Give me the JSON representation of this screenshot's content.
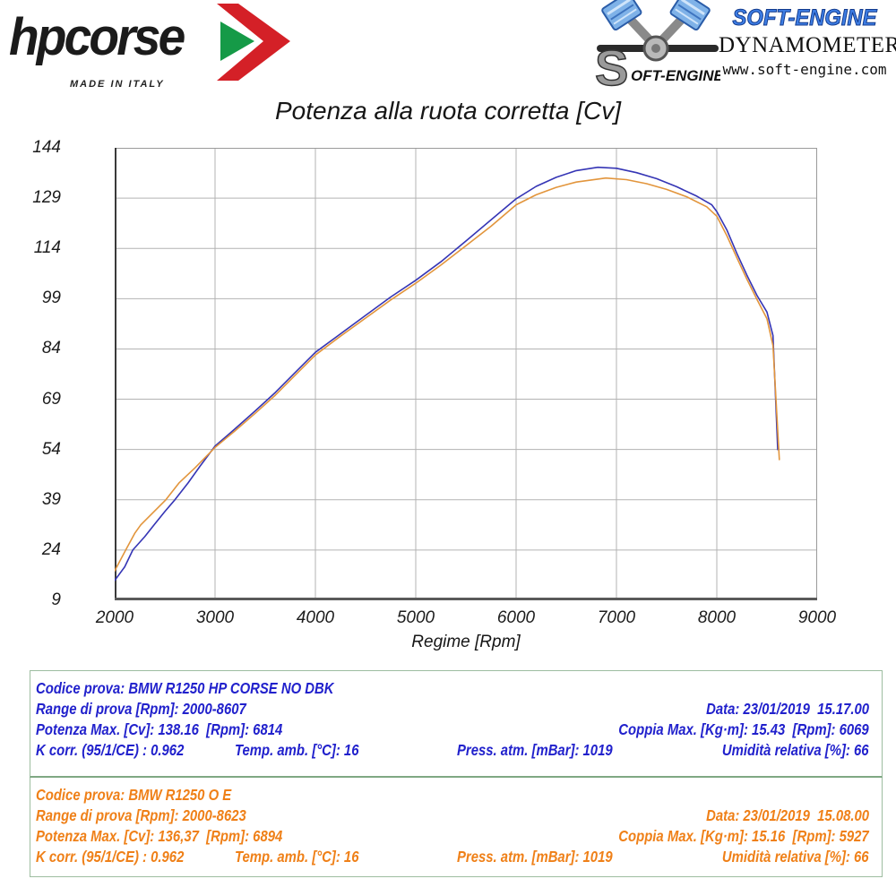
{
  "header": {
    "hpcorse": {
      "wordmark": "hpcorse",
      "made_in": "MADE IN ITALY",
      "arrow_red": "#d42027",
      "arrow_green": "#159a47"
    },
    "softengine": {
      "s_letter": "S",
      "s_rest": "OFT-ENGINE",
      "brand": "SOFT-ENGINE",
      "tagline": "DYNAMOMETERS",
      "url": "www.soft-engine.com"
    }
  },
  "chart": {
    "title": "Potenza alla ruota corretta [Cv]",
    "xlabel": "Regime [Rpm]"
  },
  "chart_data": {
    "type": "line",
    "title": "Potenza alla ruota corretta [Cv]",
    "xlabel": "Regime [Rpm]",
    "ylabel": "Potenza alla ruota corretta [Cv]",
    "xlim": [
      2000,
      9000
    ],
    "ylim": [
      9,
      144
    ],
    "xticks": [
      2000,
      3000,
      4000,
      5000,
      6000,
      7000,
      8000,
      9000
    ],
    "yticks": [
      9,
      24,
      39,
      54,
      69,
      84,
      99,
      114,
      129,
      144
    ],
    "grid": true,
    "legend_position": "none",
    "grid_color": "#b3b3b3",
    "series": [
      {
        "key": "blue",
        "name": "BMW R1250 HP CORSE NO DBK",
        "color": "#3535b5",
        "max_power_cv": 138.16,
        "max_power_rpm": 6814,
        "points": [
          [
            2000,
            14.9
          ],
          [
            2100,
            19
          ],
          [
            2180,
            24
          ],
          [
            2300,
            28
          ],
          [
            2400,
            31.8
          ],
          [
            2500,
            35.5
          ],
          [
            2600,
            39
          ],
          [
            2730,
            44
          ],
          [
            2850,
            49
          ],
          [
            3000,
            55
          ],
          [
            3200,
            60.2
          ],
          [
            3400,
            65.5
          ],
          [
            3600,
            71
          ],
          [
            3800,
            77
          ],
          [
            4000,
            83
          ],
          [
            4250,
            88.5
          ],
          [
            4500,
            94
          ],
          [
            4750,
            99.5
          ],
          [
            5000,
            104.5
          ],
          [
            5250,
            110
          ],
          [
            5500,
            116.2
          ],
          [
            5750,
            122.5
          ],
          [
            6000,
            128.8
          ],
          [
            6200,
            132.5
          ],
          [
            6400,
            135.2
          ],
          [
            6600,
            137.2
          ],
          [
            6814,
            138.2
          ],
          [
            7000,
            137.9
          ],
          [
            7200,
            136.6
          ],
          [
            7400,
            134.8
          ],
          [
            7600,
            132.4
          ],
          [
            7800,
            129.6
          ],
          [
            7950,
            127
          ],
          [
            8000,
            125
          ],
          [
            8100,
            119.5
          ],
          [
            8200,
            112.5
          ],
          [
            8300,
            106
          ],
          [
            8400,
            100
          ],
          [
            8500,
            95
          ],
          [
            8560,
            88
          ],
          [
            8607,
            54
          ]
        ]
      },
      {
        "key": "orange",
        "name": "BMW R1250 O E",
        "color": "#e2953c",
        "max_power_cv": 136.37,
        "max_power_rpm": 6894,
        "points": [
          [
            2000,
            17.8
          ],
          [
            2110,
            24
          ],
          [
            2200,
            29
          ],
          [
            2260,
            31.5
          ],
          [
            2350,
            34.2
          ],
          [
            2510,
            39
          ],
          [
            2640,
            44
          ],
          [
            2800,
            48.5
          ],
          [
            3000,
            54.6
          ],
          [
            3200,
            59.6
          ],
          [
            3400,
            64.8
          ],
          [
            3600,
            70.2
          ],
          [
            3800,
            76.2
          ],
          [
            4000,
            82.2
          ],
          [
            4250,
            87.8
          ],
          [
            4500,
            93.2
          ],
          [
            4750,
            98.6
          ],
          [
            5000,
            103.6
          ],
          [
            5250,
            109
          ],
          [
            5500,
            114.8
          ],
          [
            5750,
            120.6
          ],
          [
            6000,
            127
          ],
          [
            6200,
            130
          ],
          [
            6400,
            132.2
          ],
          [
            6600,
            133.8
          ],
          [
            6894,
            135
          ],
          [
            7100,
            134.5
          ],
          [
            7300,
            133.3
          ],
          [
            7500,
            131.6
          ],
          [
            7700,
            129.4
          ],
          [
            7900,
            126.4
          ],
          [
            8000,
            123.6
          ],
          [
            8100,
            117.8
          ],
          [
            8200,
            111.2
          ],
          [
            8300,
            104.8
          ],
          [
            8400,
            98.8
          ],
          [
            8500,
            93
          ],
          [
            8560,
            85
          ],
          [
            8623,
            51
          ]
        ]
      }
    ]
  },
  "tables": [
    {
      "color": "#2121cc",
      "codice": "Codice prova: BMW R1250 HP CORSE NO DBK",
      "range": "Range di prova [Rpm]: 2000-8607",
      "data": "Data: 23/01/2019  15.17.00",
      "potenza": "Potenza Max. [Cv]: 138.16  [Rpm]: 6814",
      "coppia": "Coppia Max. [Kg·m]: 15.43  [Rpm]: 6069",
      "kcorr": "K corr. (95/1/CE) : 0.962",
      "temp": "Temp. amb. [°C]: 16",
      "press": "Press. atm. [mBar]: 1019",
      "umidita": "Umidità relativa [%]: 66"
    },
    {
      "color": "#ef8018",
      "codice": "Codice prova: BMW R1250 O E",
      "range": "Range di prova [Rpm]: 2000-8623",
      "data": "Data: 23/01/2019  15.08.00",
      "potenza": "Potenza Max. [Cv]: 136,37  [Rpm]: 6894",
      "coppia": "Coppia Max. [Kg·m]: 15.16  [Rpm]: 5927",
      "kcorr": "K corr. (95/1/CE) : 0.962",
      "temp": "Temp. amb. [°C]: 16",
      "press": "Press. atm. [mBar]: 1019",
      "umidita": "Umidità relativa [%]: 66"
    }
  ]
}
